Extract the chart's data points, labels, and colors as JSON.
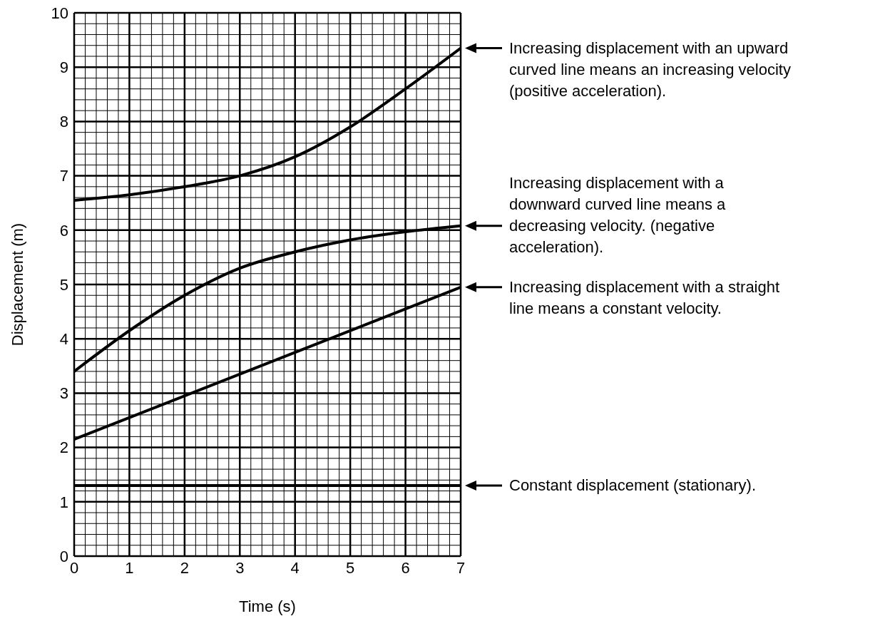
{
  "chart_data": {
    "type": "line",
    "xlabel": "Time (s)",
    "ylabel": "Displacement (m)",
    "xlim": [
      0,
      7
    ],
    "ylim": [
      0,
      10
    ],
    "xticks": [
      0,
      {
        "value": 0.2,
        "label": null
      },
      {
        "value": 0.4,
        "label": null
      },
      {
        "value": 0.6,
        "label": null
      },
      {
        "value": 0.8,
        "label": null
      },
      1,
      {
        "value": 1.2,
        "label": null
      },
      {
        "value": 1.4,
        "label": null
      },
      {
        "value": 1.6,
        "label": null
      },
      {
        "value": 1.8,
        "label": null
      },
      2,
      {
        "value": 2.2,
        "label": null
      },
      {
        "value": 2.4,
        "label": null
      },
      {
        "value": 2.6,
        "label": null
      },
      {
        "value": 2.8,
        "label": null
      },
      3,
      {
        "value": 3.2,
        "label": null
      },
      {
        "value": 3.4,
        "label": null
      },
      {
        "value": 3.6,
        "label": null
      },
      {
        "value": 3.8,
        "label": null
      },
      4,
      {
        "value": 4.2,
        "label": null
      },
      {
        "value": 4.4,
        "label": null
      },
      {
        "value": 4.6,
        "label": null
      },
      {
        "value": 4.8,
        "label": null
      },
      5,
      {
        "value": 5.2,
        "label": null
      },
      {
        "value": 5.4,
        "label": null
      },
      {
        "value": 5.6,
        "label": null
      },
      {
        "value": 5.8,
        "label": null
      },
      6,
      {
        "value": 6.2,
        "label": null
      },
      {
        "value": 6.4,
        "label": null
      },
      {
        "value": 6.6,
        "label": null
      },
      {
        "value": 6.8,
        "label": null
      },
      7
    ],
    "yticks": [
      0,
      {
        "value": 0.2,
        "label": null
      },
      {
        "value": 0.4,
        "label": null
      },
      {
        "value": 0.6,
        "label": null
      },
      {
        "value": 0.8,
        "label": null
      },
      1,
      {
        "value": 1.2,
        "label": null
      },
      {
        "value": 1.4,
        "label": null
      },
      {
        "value": 1.6,
        "label": null
      },
      {
        "value": 1.8,
        "label": null
      },
      2,
      {
        "value": 2.2,
        "label": null
      },
      {
        "value": 2.4,
        "label": null
      },
      {
        "value": 2.6,
        "label": null
      },
      {
        "value": 2.8,
        "label": null
      },
      3,
      {
        "value": 3.2,
        "label": null
      },
      {
        "value": 3.4,
        "label": null
      },
      {
        "value": 3.6,
        "label": null
      },
      {
        "value": 3.8,
        "label": null
      },
      4,
      {
        "value": 4.2,
        "label": null
      },
      {
        "value": 4.4,
        "label": null
      },
      {
        "value": 4.6,
        "label": null
      },
      {
        "value": 4.8,
        "label": null
      },
      5,
      {
        "value": 5.2,
        "label": null
      },
      {
        "value": 5.4,
        "label": null
      },
      {
        "value": 5.6,
        "label": null
      },
      {
        "value": 5.8,
        "label": null
      },
      6,
      {
        "value": 6.2,
        "label": null
      },
      {
        "value": 6.4,
        "label": null
      },
      {
        "value": 6.6,
        "label": null
      },
      {
        "value": 6.8,
        "label": null
      },
      7,
      {
        "value": 7.2,
        "label": null
      },
      {
        "value": 7.4,
        "label": null
      },
      {
        "value": 7.6,
        "label": null
      },
      {
        "value": 7.8,
        "label": null
      },
      8,
      {
        "value": 8.2,
        "label": null
      },
      {
        "value": 8.4,
        "label": null
      },
      {
        "value": 8.6,
        "label": null
      },
      {
        "value": 8.8,
        "label": null
      },
      9,
      {
        "value": 9.2,
        "label": null
      },
      {
        "value": 9.4,
        "label": null
      },
      {
        "value": 9.6,
        "label": null
      },
      {
        "value": 9.8,
        "label": null
      },
      10
    ],
    "grid": true,
    "marker": "none",
    "line_style": "solid",
    "series": [
      {
        "color": "#000000",
        "x": [
          0,
          1,
          2,
          3,
          4,
          5,
          6,
          7
        ],
        "values": [
          6.55,
          6.65,
          6.8,
          7.0,
          7.35,
          7.9,
          8.6,
          9.35
        ]
      },
      {
        "color": "#000000",
        "x": [
          0,
          1,
          2,
          3,
          4,
          5,
          6,
          7
        ],
        "values": [
          3.4,
          4.15,
          4.8,
          5.3,
          5.6,
          5.82,
          5.97,
          6.08
        ]
      },
      {
        "color": "#000000",
        "x": [
          0,
          7
        ],
        "values": [
          2.15,
          4.95
        ]
      },
      {
        "color": "#000000",
        "x": [
          0,
          7
        ],
        "values": [
          1.3,
          1.3
        ]
      }
    ],
    "annotations": [
      "Increasing displacement with an upward\ncurved line means an increasing velocity\n(positive acceleration).",
      "Increasing displacement with a\ndownward curved line means a\ndecreasing velocity. (negative\nacceleration).",
      "Increasing displacement with a straight\nline means a constant velocity.",
      "Constant displacement (stationary)."
    ]
  }
}
